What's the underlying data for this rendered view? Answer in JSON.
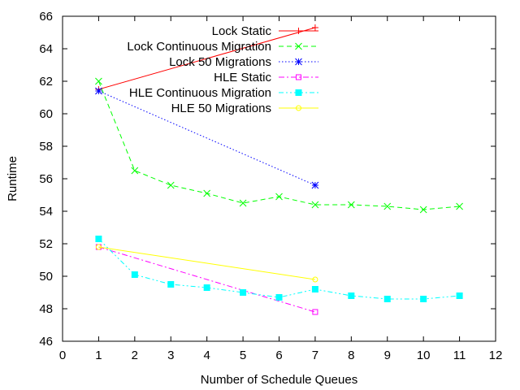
{
  "chart_data": {
    "type": "line",
    "title": "",
    "xlabel": "Number of Schedule Queues",
    "ylabel": "Runtime",
    "xlim": [
      0,
      12
    ],
    "ylim": [
      46,
      66
    ],
    "xticks": [
      "0",
      "1",
      "2",
      "3",
      "4",
      "5",
      "6",
      "7",
      "8",
      "9",
      "10",
      "11",
      "12"
    ],
    "yticks": [
      "46",
      "48",
      "50",
      "52",
      "54",
      "56",
      "58",
      "60",
      "62",
      "64",
      "66"
    ],
    "grid": false,
    "legend": "top-right",
    "series": [
      {
        "name": "Lock Static",
        "color": "#ff0000",
        "dash": "solid",
        "marker": "plus",
        "x": [
          1,
          7
        ],
        "y": [
          61.5,
          65.3
        ]
      },
      {
        "name": "Lock Continuous Migration",
        "color": "#00ff00",
        "dash": "dashed",
        "marker": "cross",
        "x": [
          1,
          2,
          3,
          4,
          5,
          6,
          7,
          8,
          9,
          10,
          11
        ],
        "y": [
          62.0,
          56.5,
          55.6,
          55.1,
          54.5,
          54.9,
          54.4,
          54.4,
          54.3,
          54.1,
          54.3
        ]
      },
      {
        "name": "Lock 50 Migrations",
        "color": "#0000ff",
        "dash": "dotted",
        "marker": "star",
        "x": [
          1,
          7
        ],
        "y": [
          61.4,
          55.6
        ]
      },
      {
        "name": "HLE Static",
        "color": "#ff00ff",
        "dash": "dashdot",
        "marker": "open-square",
        "x": [
          1,
          7
        ],
        "y": [
          51.8,
          47.8
        ]
      },
      {
        "name": "HLE Continuous Migration",
        "color": "#00ffff",
        "dash": "dashdotdot",
        "marker": "filled-square",
        "x": [
          1,
          2,
          3,
          4,
          5,
          6,
          7,
          8,
          9,
          10,
          11
        ],
        "y": [
          52.3,
          50.1,
          49.5,
          49.3,
          49.0,
          48.7,
          49.2,
          48.8,
          48.6,
          48.6,
          48.8
        ]
      },
      {
        "name": "HLE 50 Migrations",
        "color": "#ffff00",
        "dash": "solid",
        "marker": "open-circle",
        "x": [
          1,
          7
        ],
        "y": [
          51.8,
          49.8
        ]
      }
    ]
  }
}
